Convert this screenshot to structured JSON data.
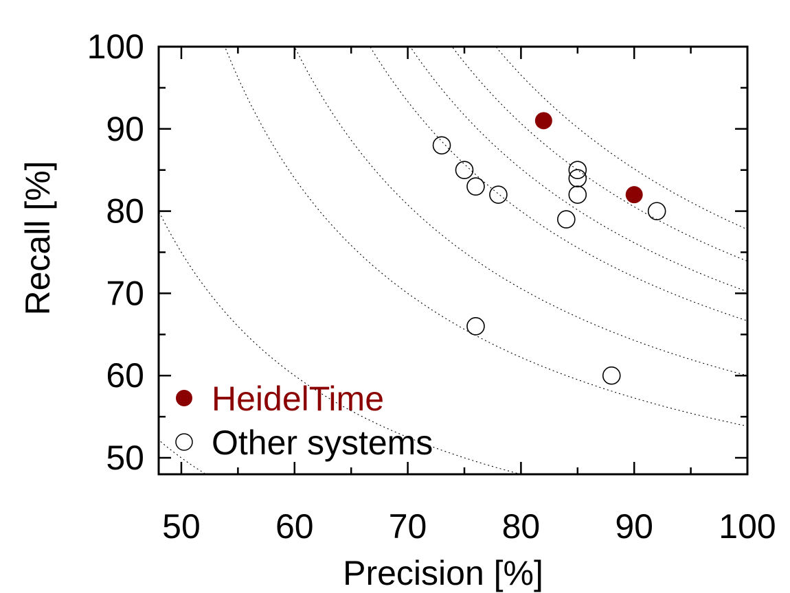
{
  "chart_data": {
    "type": "scatter",
    "xlabel": "Precision [%]",
    "ylabel": "Recall [%]",
    "xlim": [
      48,
      100
    ],
    "ylim": [
      48,
      100
    ],
    "x_ticks": [
      50,
      60,
      70,
      80,
      90,
      100
    ],
    "y_ticks": [
      50,
      60,
      70,
      80,
      90,
      100
    ],
    "minor_tick_step": 5,
    "grid": false,
    "legend_position": "bottom-left",
    "f1_isolines": [
      0.5,
      0.6,
      0.7,
      0.75,
      0.8,
      0.825,
      0.85,
      0.875
    ],
    "series": [
      {
        "name": "HeidelTime",
        "color": "#8b0000",
        "marker": "filled-circle",
        "points": [
          {
            "x": 82,
            "y": 91
          },
          {
            "x": 90,
            "y": 82
          }
        ]
      },
      {
        "name": "Other systems",
        "color": "#000000",
        "marker": "open-circle",
        "points": [
          {
            "x": 73,
            "y": 88
          },
          {
            "x": 75,
            "y": 85
          },
          {
            "x": 76,
            "y": 83
          },
          {
            "x": 78,
            "y": 82
          },
          {
            "x": 85,
            "y": 85
          },
          {
            "x": 85,
            "y": 84
          },
          {
            "x": 85,
            "y": 82
          },
          {
            "x": 84,
            "y": 79
          },
          {
            "x": 92,
            "y": 80
          },
          {
            "x": 76,
            "y": 66
          },
          {
            "x": 88,
            "y": 60
          }
        ]
      }
    ]
  }
}
